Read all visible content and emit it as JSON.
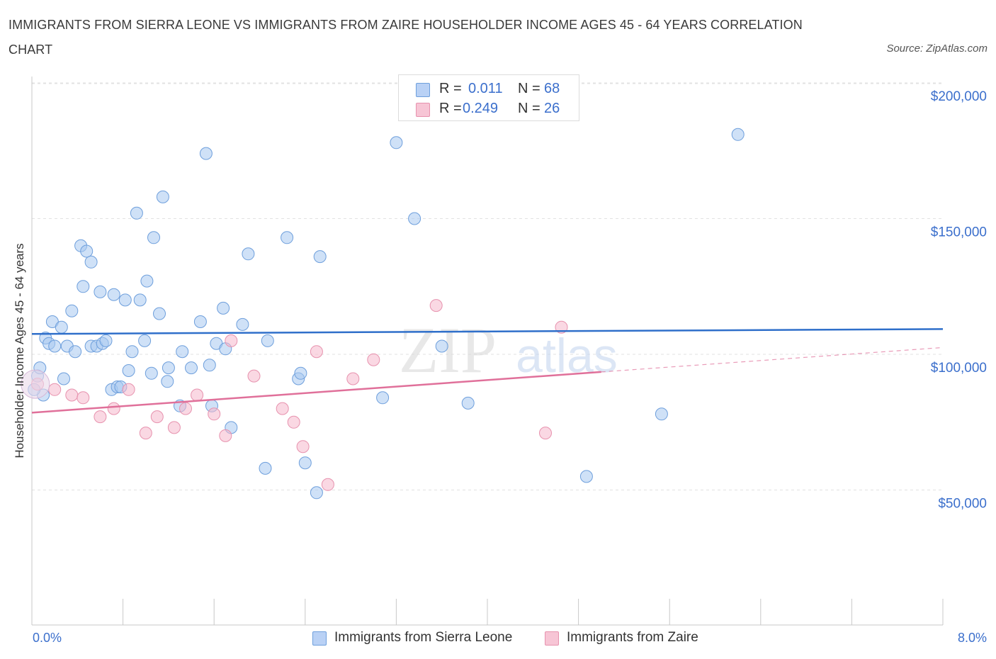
{
  "title": "IMMIGRANTS FROM SIERRA LEONE VS IMMIGRANTS FROM ZAIRE HOUSEHOLDER INCOME AGES 45 - 64 YEARS CORRELATION CHART",
  "source": "Source: ZipAtlas.com",
  "watermark": {
    "zip": "ZIP",
    "atlas": "atlas"
  },
  "stats": [
    {
      "r_label": "R =",
      "r_value": "0.011",
      "n_label": "N =",
      "n_value": "68",
      "color": "#b9d1f5"
    },
    {
      "r_label": "R =",
      "r_value": "0.249",
      "n_label": "N =",
      "n_value": "26",
      "color": "#f7c5d5"
    }
  ],
  "legend": [
    {
      "label": "Immigrants from Sierra Leone",
      "color": "#b9d1f5"
    },
    {
      "label": "Immigrants from Zaire",
      "color": "#f7c5d5"
    }
  ],
  "x_tick_labels": {
    "left": "0.0%",
    "right": "8.0%"
  },
  "chart_data": {
    "type": "scatter",
    "title": "IMMIGRANTS FROM SIERRA LEONE VS IMMIGRANTS FROM ZAIRE HOUSEHOLDER INCOME AGES 45 - 64 YEARS CORRELATION CHART",
    "xlabel": "",
    "ylabel": "Householder Income Ages 45 - 64 years",
    "xlim": [
      0,
      8
    ],
    "ylim": [
      0,
      200000
    ],
    "y_ticks": [
      {
        "value": 200000,
        "label": "$200,000"
      },
      {
        "value": 150000,
        "label": "$150,000"
      },
      {
        "value": 100000,
        "label": "$100,000"
      },
      {
        "value": 50000,
        "label": "$50,000"
      }
    ],
    "grid": true,
    "series": [
      {
        "name": "Immigrants from Sierra Leone",
        "color": "#a8c8f0",
        "edge": "#6e9fdc",
        "trend": {
          "x": [
            0,
            8
          ],
          "y": [
            107500,
            109300
          ],
          "color": "#2f6fca",
          "dashed_from": null
        },
        "points": [
          [
            0.05,
            92000
          ],
          [
            0.07,
            95000
          ],
          [
            0.1,
            85000
          ],
          [
            0.12,
            106000
          ],
          [
            0.15,
            104000
          ],
          [
            0.18,
            112000
          ],
          [
            0.2,
            103000
          ],
          [
            0.26,
            110000
          ],
          [
            0.28,
            91000
          ],
          [
            0.31,
            103000
          ],
          [
            0.35,
            116000
          ],
          [
            0.38,
            101000
          ],
          [
            0.43,
            140000
          ],
          [
            0.45,
            125000
          ],
          [
            0.48,
            138000
          ],
          [
            0.52,
            134000
          ],
          [
            0.52,
            103000
          ],
          [
            0.57,
            103000
          ],
          [
            0.6,
            123000
          ],
          [
            0.62,
            104000
          ],
          [
            0.65,
            105000
          ],
          [
            0.7,
            87000
          ],
          [
            0.72,
            122000
          ],
          [
            0.75,
            88000
          ],
          [
            0.78,
            88000
          ],
          [
            0.82,
            120000
          ],
          [
            0.85,
            94000
          ],
          [
            0.88,
            101000
          ],
          [
            0.92,
            152000
          ],
          [
            0.95,
            120000
          ],
          [
            0.99,
            105000
          ],
          [
            1.01,
            127000
          ],
          [
            1.05,
            93000
          ],
          [
            1.07,
            143000
          ],
          [
            1.12,
            115000
          ],
          [
            1.15,
            158000
          ],
          [
            1.19,
            90000
          ],
          [
            1.2,
            95000
          ],
          [
            1.3,
            81000
          ],
          [
            1.32,
            101000
          ],
          [
            1.4,
            95000
          ],
          [
            1.48,
            112000
          ],
          [
            1.53,
            174000
          ],
          [
            1.56,
            96000
          ],
          [
            1.58,
            81000
          ],
          [
            1.62,
            104000
          ],
          [
            1.68,
            117000
          ],
          [
            1.7,
            102000
          ],
          [
            1.75,
            73000
          ],
          [
            1.85,
            111000
          ],
          [
            1.9,
            137000
          ],
          [
            2.05,
            58000
          ],
          [
            2.07,
            105000
          ],
          [
            2.24,
            143000
          ],
          [
            2.34,
            91000
          ],
          [
            2.36,
            93000
          ],
          [
            2.4,
            60000
          ],
          [
            2.5,
            49000
          ],
          [
            2.53,
            136000
          ],
          [
            3.08,
            84000
          ],
          [
            3.2,
            178000
          ],
          [
            3.36,
            150000
          ],
          [
            3.6,
            103000
          ],
          [
            3.83,
            82000
          ],
          [
            4.87,
            55000
          ],
          [
            5.53,
            78000
          ],
          [
            6.2,
            181000
          ],
          [
            0.02,
            87000
          ]
        ]
      },
      {
        "name": "Immigrants from Zaire",
        "color": "#f5b8cc",
        "edge": "#e792ae",
        "trend": {
          "x": [
            0,
            8
          ],
          "y": [
            78500,
            102500
          ],
          "color": "#e0709a",
          "dashed_from": 5.0
        },
        "points": [
          [
            0.05,
            89000
          ],
          [
            0.2,
            87000
          ],
          [
            0.35,
            85000
          ],
          [
            0.45,
            84000
          ],
          [
            0.6,
            77000
          ],
          [
            0.72,
            80000
          ],
          [
            0.85,
            87000
          ],
          [
            1.0,
            71000
          ],
          [
            1.1,
            77000
          ],
          [
            1.25,
            73000
          ],
          [
            1.35,
            80000
          ],
          [
            1.45,
            85000
          ],
          [
            1.6,
            78000
          ],
          [
            1.7,
            70000
          ],
          [
            1.95,
            92000
          ],
          [
            2.2,
            80000
          ],
          [
            2.3,
            75000
          ],
          [
            2.38,
            66000
          ],
          [
            2.5,
            101000
          ],
          [
            2.6,
            52000
          ],
          [
            2.82,
            91000
          ],
          [
            3.0,
            98000
          ],
          [
            3.55,
            118000
          ],
          [
            4.51,
            71000
          ],
          [
            4.65,
            110000
          ],
          [
            1.75,
            105000
          ]
        ]
      }
    ]
  }
}
